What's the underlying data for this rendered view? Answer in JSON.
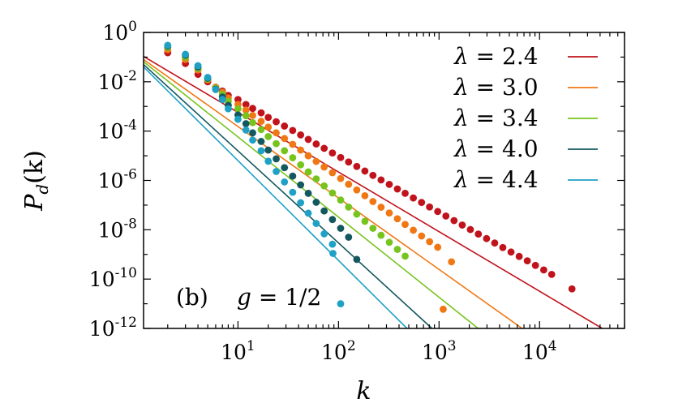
{
  "chart_data": {
    "type": "scatter",
    "xscale": "log",
    "yscale": "log",
    "xlim": [
      1.15,
      70000
    ],
    "ylim": [
      1e-12,
      1
    ],
    "xlabel": "k",
    "ylabel": "P_d(k)",
    "legend_position": "top-right",
    "x_ticks": [
      {
        "value": 10,
        "base": "10",
        "exp": "1"
      },
      {
        "value": 100,
        "base": "10",
        "exp": "2"
      },
      {
        "value": 1000,
        "base": "10",
        "exp": "3"
      },
      {
        "value": 10000,
        "base": "10",
        "exp": "4"
      }
    ],
    "y_ticks": [
      {
        "value": 1,
        "base": "10",
        "exp": "0"
      },
      {
        "value": 0.01,
        "base": "10",
        "exp": "-2"
      },
      {
        "value": 0.0001,
        "base": "10",
        "exp": "-4"
      },
      {
        "value": 1e-06,
        "base": "10",
        "exp": "-6"
      },
      {
        "value": 1e-08,
        "base": "10",
        "exp": "-8"
      },
      {
        "value": 1e-10,
        "base": "10",
        "exp": "-10"
      },
      {
        "value": 1e-12,
        "base": "10",
        "exp": "-12"
      }
    ],
    "annotations": [
      {
        "label": "(b)"
      },
      {
        "label": "g = 1/2"
      }
    ],
    "series": [
      {
        "name": "λ = 2.4",
        "color": "#c0131c",
        "fit_line": {
          "from": [
            1.15,
            0.107
          ],
          "to": [
            42000,
            1e-12
          ]
        },
        "points": [
          [
            1,
            0.3
          ],
          [
            2,
            0.15
          ],
          [
            3,
            0.055
          ],
          [
            4,
            0.02
          ],
          [
            5,
            0.01
          ],
          [
            6,
            0.006
          ],
          [
            7,
            0.0042
          ],
          [
            8,
            0.0028
          ],
          [
            10,
            0.0019
          ],
          [
            12,
            0.0012
          ],
          [
            14,
            0.00083
          ],
          [
            17,
            0.00055
          ],
          [
            20,
            0.00036
          ],
          [
            24,
            0.00024
          ],
          [
            29,
            0.00016
          ],
          [
            35,
            0.000106
          ],
          [
            42,
            7e-05
          ],
          [
            50,
            4.6e-05
          ],
          [
            60,
            3e-05
          ],
          [
            72,
            2e-05
          ],
          [
            87,
            1.3e-05
          ],
          [
            105,
            8.5e-06
          ],
          [
            126,
            5.6e-06
          ],
          [
            152,
            3.7e-06
          ],
          [
            183,
            2.4e-06
          ],
          [
            220,
            1.6e-06
          ],
          [
            265,
            1.05e-06
          ],
          [
            320,
            6.9e-07
          ],
          [
            385,
            4.5e-07
          ],
          [
            460,
            3e-07
          ],
          [
            555,
            1.95e-07
          ],
          [
            670,
            1.28e-07
          ],
          [
            805,
            8.4e-08
          ],
          [
            970,
            5.5e-08
          ],
          [
            1170,
            3.6e-08
          ],
          [
            1410,
            2.35e-08
          ],
          [
            1700,
            1.55e-08
          ],
          [
            2050,
            1.02e-08
          ],
          [
            2460,
            6.7e-09
          ],
          [
            2970,
            4.4e-09
          ],
          [
            3580,
            2.9e-09
          ],
          [
            4310,
            1.9e-09
          ],
          [
            5200,
            1.25e-09
          ],
          [
            6270,
            8.3e-10
          ],
          [
            7550,
            5.5e-10
          ],
          [
            9100,
            3.6e-10
          ],
          [
            11000,
            2.35e-10
          ],
          [
            13200,
            1.55e-10
          ],
          [
            21000,
            4e-11
          ]
        ]
      },
      {
        "name": "λ = 3.0",
        "color": "#f07814",
        "fit_line": {
          "from": [
            1.15,
            0.08
          ],
          "to": [
            6700,
            1e-12
          ]
        },
        "points": [
          [
            1,
            0.35
          ],
          [
            2,
            0.2
          ],
          [
            3,
            0.08
          ],
          [
            4,
            0.03
          ],
          [
            5,
            0.012
          ],
          [
            6,
            0.006
          ],
          [
            7,
            0.0038
          ],
          [
            8,
            0.0022
          ],
          [
            10,
            0.0012
          ],
          [
            12,
            0.00072
          ],
          [
            14,
            0.00043
          ],
          [
            17,
            0.00025
          ],
          [
            20,
            0.000145
          ],
          [
            24,
            8.5e-05
          ],
          [
            29,
            5e-05
          ],
          [
            35,
            2.9e-05
          ],
          [
            42,
            1.7e-05
          ],
          [
            50,
            1e-05
          ],
          [
            60,
            5.9e-06
          ],
          [
            72,
            3.5e-06
          ],
          [
            87,
            2.05e-06
          ],
          [
            105,
            1.2e-06
          ],
          [
            126,
            7e-07
          ],
          [
            152,
            4.1e-07
          ],
          [
            183,
            2.4e-07
          ],
          [
            220,
            1.4e-07
          ],
          [
            265,
            8.2e-08
          ],
          [
            320,
            4.8e-08
          ],
          [
            385,
            2.8e-08
          ],
          [
            460,
            1.65e-08
          ],
          [
            555,
            9.6e-09
          ],
          [
            670,
            5.6e-09
          ],
          [
            805,
            3.3e-09
          ],
          [
            970,
            1.95e-09
          ],
          [
            1330,
            5e-10
          ],
          [
            1100,
            6e-12
          ]
        ]
      },
      {
        "name": "λ = 3.4",
        "color": "#77c41e",
        "fit_line": {
          "from": [
            1.15,
            0.065
          ],
          "to": [
            2450,
            1e-12
          ]
        },
        "points": [
          [
            1,
            0.4
          ],
          [
            2,
            0.25
          ],
          [
            3,
            0.1
          ],
          [
            4,
            0.035
          ],
          [
            5,
            0.013
          ],
          [
            6,
            0.0055
          ],
          [
            7,
            0.0031
          ],
          [
            8,
            0.0016
          ],
          [
            10,
            0.0008
          ],
          [
            12,
            0.00042
          ],
          [
            14,
            0.00022
          ],
          [
            17,
            0.000115
          ],
          [
            20,
            6e-05
          ],
          [
            24,
            3.1e-05
          ],
          [
            29,
            1.6e-05
          ],
          [
            35,
            8.3e-06
          ],
          [
            42,
            4.3e-06
          ],
          [
            50,
            2.2e-06
          ],
          [
            60,
            1.15e-06
          ],
          [
            72,
            6e-07
          ],
          [
            87,
            3.1e-07
          ],
          [
            105,
            1.6e-07
          ],
          [
            126,
            8.3e-08
          ],
          [
            152,
            4.3e-08
          ],
          [
            183,
            2.2e-08
          ],
          [
            220,
            1.15e-08
          ],
          [
            265,
            6e-09
          ],
          [
            320,
            3.1e-09
          ],
          [
            385,
            1.6e-09
          ],
          [
            460,
            8.5e-10
          ]
        ]
      },
      {
        "name": "λ = 4.0",
        "color": "#13575f",
        "fit_line": {
          "from": [
            1.15,
            0.05
          ],
          "to": [
            850,
            1e-12
          ]
        },
        "points": [
          [
            1,
            0.42
          ],
          [
            2,
            0.28
          ],
          [
            3,
            0.12
          ],
          [
            4,
            0.04
          ],
          [
            5,
            0.014
          ],
          [
            6,
            0.005
          ],
          [
            7,
            0.0024
          ],
          [
            8,
            0.0011
          ],
          [
            10,
            0.00045
          ],
          [
            12,
            0.0002
          ],
          [
            14,
            8.5e-05
          ],
          [
            17,
            3.8e-05
          ],
          [
            20,
            1.7e-05
          ],
          [
            24,
            7.5e-06
          ],
          [
            29,
            3.3e-06
          ],
          [
            35,
            1.5e-06
          ],
          [
            42,
            6.6e-07
          ],
          [
            50,
            3e-07
          ],
          [
            60,
            1.3e-07
          ],
          [
            72,
            5.8e-08
          ],
          [
            87,
            2.6e-08
          ],
          [
            105,
            1.15e-08
          ],
          [
            126,
            5e-09
          ],
          [
            152,
            6.3e-10
          ]
        ]
      },
      {
        "name": "λ = 4.4",
        "color": "#1fa1c6",
        "fit_line": {
          "from": [
            1.15,
            0.04
          ],
          "to": [
            480,
            1e-12
          ]
        },
        "points": [
          [
            1,
            0.45
          ],
          [
            2,
            0.3
          ],
          [
            3,
            0.13
          ],
          [
            4,
            0.045
          ],
          [
            5,
            0.015
          ],
          [
            6,
            0.0048
          ],
          [
            7,
            0.0019
          ],
          [
            8,
            0.0008
          ],
          [
            10,
            0.0003
          ],
          [
            12,
            0.00011
          ],
          [
            14,
            4.3e-05
          ],
          [
            17,
            1.6e-05
          ],
          [
            20,
            6e-06
          ],
          [
            24,
            2.3e-06
          ],
          [
            29,
            8.7e-07
          ],
          [
            35,
            3.3e-07
          ],
          [
            42,
            1.25e-07
          ],
          [
            50,
            4.7e-08
          ],
          [
            60,
            1.8e-08
          ],
          [
            72,
            6.8e-09
          ],
          [
            87,
            2.6e-09
          ],
          [
            88,
            1.1e-09
          ],
          [
            105,
            1e-11
          ]
        ]
      }
    ]
  }
}
